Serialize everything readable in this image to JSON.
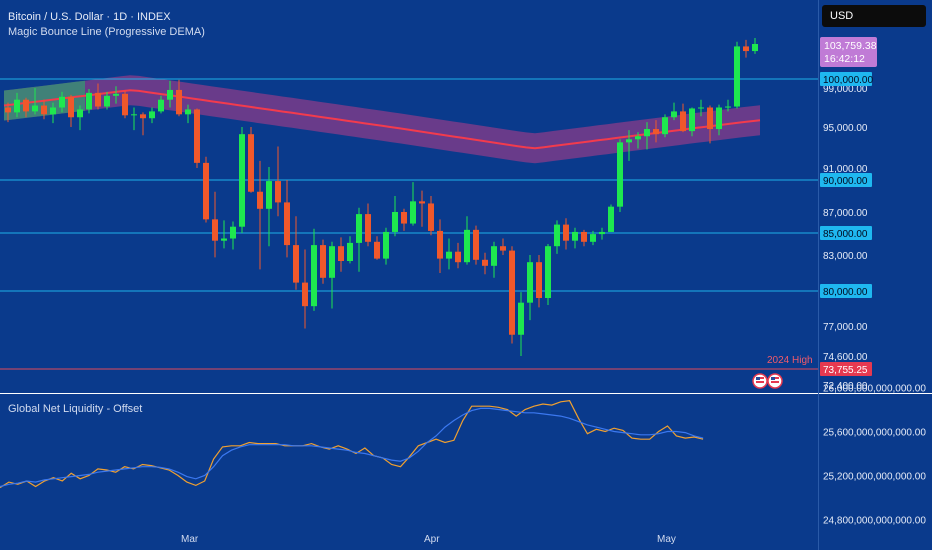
{
  "header": {
    "symbol": "Bitcoin / U.S. Dollar · 1D · INDEX",
    "indicator": "Magic Bounce Line (Progressive DEMA)",
    "currency": "USD"
  },
  "price_badge": {
    "value": "103,759.38",
    "countdown": "16:42:12"
  },
  "annotation": {
    "label": "2024 High",
    "value": "73,755.25",
    "price": 73755.25
  },
  "lower_panel": {
    "title": "Global Net Liquidity - Offset"
  },
  "colors": {
    "up": "#1ee84f",
    "down": "#f0582b",
    "band": "#8a3c8a",
    "band_green": "#2fa070",
    "dema": "#f23b4d",
    "hline": "#1fb0e8",
    "liq_orange": "#f0a030",
    "liq_blue": "#3b78f0"
  },
  "chart_data": [
    {
      "type": "candlestick",
      "title": "Bitcoin / U.S. Dollar · 1D · INDEX",
      "x_labels": [
        "Mar",
        "Apr",
        "May"
      ],
      "y_ticks": [
        72400,
        74600,
        77000,
        83000,
        87000,
        91000,
        95000,
        99000
      ],
      "y_tick_labels": [
        "72,400.00",
        "74,600.00",
        "77,000.00",
        "83,000.00",
        "87,000.00",
        "91,000.00",
        "95,000.00",
        "99,000.00"
      ],
      "horizontal_levels": [
        {
          "value": 100000,
          "label": "100,000.00"
        },
        {
          "value": 90000,
          "label": "90,000.00"
        },
        {
          "value": 85000,
          "label": "85,000.00"
        },
        {
          "value": 80000,
          "label": "80,000.00"
        }
      ],
      "candles": [
        [
          97000,
          97500,
          95500,
          96500
        ],
        [
          96500,
          98500,
          96000,
          97800
        ],
        [
          97800,
          98000,
          96000,
          96600
        ],
        [
          96600,
          99000,
          96300,
          97200
        ],
        [
          97200,
          97800,
          95800,
          96300
        ],
        [
          96300,
          97500,
          95400,
          97000
        ],
        [
          97000,
          98600,
          96500,
          98100
        ],
        [
          98100,
          98300,
          95000,
          96000
        ],
        [
          96000,
          97200,
          94700,
          96800
        ],
        [
          96800,
          98900,
          96400,
          98500
        ],
        [
          98500,
          99500,
          96800,
          97100
        ],
        [
          97100,
          98600,
          96800,
          98200
        ],
        [
          98200,
          99200,
          97400,
          98400
        ],
        [
          98400,
          98700,
          95900,
          96200
        ],
        [
          96200,
          97000,
          94700,
          96300
        ],
        [
          96300,
          96500,
          94200,
          95900
        ],
        [
          95900,
          97000,
          95400,
          96600
        ],
        [
          96600,
          98200,
          96400,
          97800
        ],
        [
          97800,
          99800,
          97000,
          98800
        ],
        [
          98800,
          99900,
          96100,
          96300
        ],
        [
          96300,
          97300,
          95400,
          96800
        ],
        [
          96800,
          96900,
          91000,
          91500
        ],
        [
          91500,
          92100,
          86000,
          86300
        ],
        [
          86300,
          88900,
          82800,
          84300
        ],
        [
          84300,
          86200,
          83600,
          84500
        ],
        [
          84500,
          86100,
          83500,
          85600
        ],
        [
          85600,
          95000,
          85000,
          94300
        ],
        [
          94300,
          95000,
          88800,
          88900
        ],
        [
          88900,
          91700,
          81800,
          87300
        ],
        [
          87300,
          91100,
          83800,
          89900
        ],
        [
          89900,
          93100,
          86600,
          87900
        ],
        [
          87900,
          90000,
          82800,
          83900
        ],
        [
          83900,
          86600,
          80100,
          80700
        ],
        [
          80700,
          83500,
          76800,
          78700
        ],
        [
          78700,
          85400,
          78300,
          83900
        ],
        [
          83900,
          84400,
          80600,
          81100
        ],
        [
          81100,
          84200,
          78500,
          83800
        ],
        [
          83800,
          84600,
          81600,
          82500
        ],
        [
          82500,
          84700,
          82300,
          84100
        ],
        [
          84100,
          87400,
          81600,
          86800
        ],
        [
          86800,
          87800,
          83800,
          84200
        ],
        [
          84200,
          84700,
          82600,
          82700
        ],
        [
          82700,
          85500,
          82200,
          85100
        ],
        [
          85100,
          88500,
          84700,
          87000
        ],
        [
          87000,
          87300,
          85200,
          85900
        ],
        [
          85900,
          89800,
          85700,
          88000
        ],
        [
          88000,
          89000,
          85600,
          87800
        ],
        [
          87800,
          88500,
          84800,
          85200
        ],
        [
          85200,
          86300,
          81500,
          82700
        ],
        [
          82700,
          84500,
          81800,
          83300
        ],
        [
          83300,
          84100,
          81900,
          82400
        ],
        [
          82400,
          86600,
          82200,
          85300
        ],
        [
          85300,
          85700,
          82200,
          82600
        ],
        [
          82600,
          83200,
          81400,
          82100
        ],
        [
          82100,
          84200,
          81100,
          83800
        ],
        [
          83800,
          84500,
          83000,
          83400
        ],
        [
          83400,
          83800,
          75600,
          76300
        ],
        [
          76300,
          79900,
          74600,
          79000
        ],
        [
          79000,
          83000,
          77500,
          82400
        ],
        [
          82400,
          83000,
          78600,
          79400
        ],
        [
          79400,
          84000,
          78800,
          83800
        ],
        [
          83800,
          86200,
          83100,
          85800
        ],
        [
          85800,
          86400,
          83500,
          84300
        ],
        [
          84300,
          85500,
          83600,
          85100
        ],
        [
          85100,
          85300,
          83800,
          84200
        ],
        [
          84200,
          85200,
          83900,
          84900
        ],
        [
          84900,
          85500,
          84400,
          85100
        ],
        [
          85100,
          87700,
          85100,
          87500
        ],
        [
          87500,
          93800,
          87000,
          93500
        ],
        [
          93500,
          94700,
          91700,
          93800
        ],
        [
          93800,
          94500,
          92900,
          94100
        ],
        [
          94100,
          95500,
          92800,
          94800
        ],
        [
          94800,
          95700,
          93500,
          94300
        ],
        [
          94300,
          96300,
          94000,
          96000
        ],
        [
          96000,
          97500,
          95700,
          96600
        ],
        [
          96600,
          97400,
          94500,
          94600
        ],
        [
          94600,
          97000,
          94100,
          96900
        ],
        [
          96900,
          97800,
          96100,
          97000
        ],
        [
          97000,
          97200,
          93400,
          94800
        ],
        [
          94800,
          97300,
          94200,
          97000
        ],
        [
          97000,
          97800,
          96600,
          97100
        ],
        [
          97100,
          104000,
          96900,
          103500
        ],
        [
          103500,
          104200,
          102300,
          103000
        ],
        [
          103000,
          104400,
          102700,
          103759.38
        ]
      ]
    },
    {
      "type": "line",
      "title": "Global Net Liquidity - Offset",
      "y_ticks": [
        24800,
        25200,
        25600,
        26000
      ],
      "y_unit": "billions",
      "y_tick_labels": [
        "24,800,000,000,000.00",
        "25,200,000,000,000.00",
        "25,600,000,000,000.00",
        "26,000,000,000,000.00"
      ],
      "series": [
        {
          "color": "#f0a030",
          "values": [
            25090,
            25140,
            25120,
            25150,
            25100,
            25150,
            25180,
            25150,
            25220,
            25170,
            25200,
            25260,
            25250,
            25230,
            25280,
            25260,
            25300,
            25290,
            25270,
            25250,
            25200,
            25140,
            25110,
            25150,
            25350,
            25460,
            25470,
            25470,
            25500,
            25490,
            25490,
            25490,
            25470,
            25470,
            25470,
            25490,
            25460,
            25440,
            25470,
            25440,
            25400,
            25450,
            25380,
            25360,
            25300,
            25280,
            25370,
            25470,
            25500,
            25530,
            25500,
            25520,
            25700,
            25830,
            25830,
            25830,
            25820,
            25800,
            25740,
            25800,
            25830,
            25850,
            25840,
            25870,
            25880,
            25720,
            25580,
            25620,
            25600,
            25630,
            25610,
            25540,
            25530,
            25530,
            25600,
            25650,
            25560,
            25540,
            25550,
            25530
          ]
        },
        {
          "color": "#3b78f0",
          "values": [
            25100,
            25120,
            25130,
            25150,
            25140,
            25160,
            25170,
            25180,
            25190,
            25200,
            25210,
            25230,
            25240,
            25250,
            25260,
            25270,
            25280,
            25280,
            25275,
            25260,
            25230,
            25190,
            25170,
            25200,
            25280,
            25380,
            25430,
            25460,
            25480,
            25480,
            25480,
            25480,
            25480,
            25470,
            25470,
            25470,
            25460,
            25450,
            25440,
            25430,
            25410,
            25400,
            25380,
            25360,
            25340,
            25330,
            25360,
            25420,
            25500,
            25560,
            25640,
            25700,
            25750,
            25790,
            25810,
            25810,
            25800,
            25790,
            25780,
            25770,
            25770,
            25760,
            25750,
            25740,
            25720,
            25690,
            25660,
            25640,
            25620,
            25600,
            25590,
            25580,
            25570,
            25570,
            25580,
            25600,
            25600,
            25590,
            25560,
            25540
          ]
        }
      ]
    }
  ]
}
